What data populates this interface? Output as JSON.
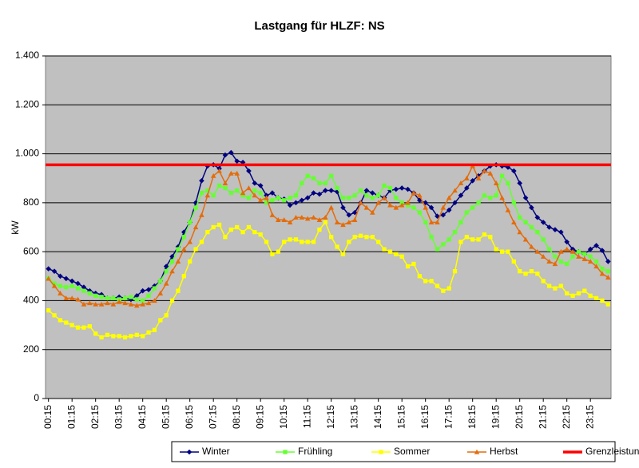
{
  "chart_data": {
    "type": "line",
    "title": "Lastgang für HLZF: NS",
    "y_label": "kW",
    "categories": [
      "00:15",
      null,
      null,
      null,
      "01:15",
      null,
      null,
      null,
      "02:15",
      null,
      null,
      null,
      "03:15",
      null,
      null,
      null,
      "04:15",
      null,
      null,
      null,
      "05:15",
      null,
      null,
      null,
      "06:15",
      null,
      null,
      null,
      "07:15",
      null,
      null,
      null,
      "08:15",
      null,
      null,
      null,
      "09:15",
      null,
      null,
      null,
      "10:15",
      null,
      null,
      null,
      "11:15",
      null,
      null,
      null,
      "12:15",
      null,
      null,
      null,
      "13:15",
      null,
      null,
      null,
      "14:15",
      null,
      null,
      null,
      "15:15",
      null,
      null,
      null,
      "16:15",
      null,
      null,
      null,
      "17:15",
      null,
      null,
      null,
      "18:15",
      null,
      null,
      null,
      "19:15",
      null,
      null,
      null,
      "20:15",
      null,
      null,
      null,
      "21:15",
      null,
      null,
      null,
      "22:15",
      null,
      null,
      null,
      "23:15",
      null,
      null,
      null
    ],
    "ylim": [
      0,
      1400
    ],
    "yticks": [
      0,
      200,
      400,
      600,
      800,
      {
        "value": 1000,
        "label": "1.000"
      },
      {
        "value": 1200,
        "label": "1.200"
      },
      {
        "value": 1400,
        "label": "1.400"
      }
    ],
    "grid": true,
    "series": [
      {
        "name": "Winter",
        "color": "#000080",
        "marker": "diamond",
        "values": [
          530,
          520,
          500,
          490,
          480,
          470,
          455,
          440,
          430,
          425,
          410,
          410,
          415,
          410,
          405,
          420,
          440,
          445,
          460,
          480,
          540,
          580,
          620,
          680,
          720,
          800,
          890,
          950,
          955,
          940,
          995,
          1005,
          970,
          965,
          930,
          880,
          870,
          830,
          840,
          820,
          815,
          790,
          800,
          810,
          820,
          840,
          835,
          850,
          850,
          845,
          780,
          750,
          760,
          800,
          850,
          840,
          830,
          820,
          850,
          855,
          860,
          855,
          840,
          810,
          800,
          780,
          745,
          750,
          770,
          800,
          830,
          860,
          890,
          910,
          930,
          950,
          955,
          950,
          945,
          930,
          880,
          820,
          780,
          740,
          720,
          700,
          690,
          680,
          640,
          610,
          600,
          590,
          610,
          625,
          605,
          560
        ]
      },
      {
        "name": "Frühling",
        "color": "#66ff33",
        "marker": "square",
        "values": [
          490,
          470,
          460,
          455,
          460,
          450,
          440,
          430,
          420,
          415,
          410,
          410,
          405,
          410,
          415,
          405,
          400,
          420,
          450,
          480,
          520,
          560,
          610,
          660,
          720,
          780,
          840,
          850,
          830,
          870,
          860,
          840,
          850,
          830,
          820,
          850,
          840,
          800,
          810,
          820,
          810,
          820,
          830,
          880,
          910,
          900,
          880,
          880,
          910,
          860,
          820,
          820,
          830,
          850,
          830,
          820,
          830,
          870,
          860,
          820,
          800,
          790,
          780,
          760,
          720,
          660,
          610,
          630,
          650,
          680,
          720,
          760,
          780,
          800,
          830,
          820,
          830,
          910,
          880,
          800,
          740,
          720,
          700,
          680,
          650,
          610,
          580,
          560,
          550,
          580,
          600,
          590,
          580,
          560,
          530,
          520
        ]
      },
      {
        "name": "Sommer",
        "color": "#ffff00",
        "marker": "square",
        "values": [
          360,
          340,
          320,
          310,
          300,
          290,
          290,
          295,
          265,
          250,
          260,
          255,
          255,
          250,
          255,
          260,
          255,
          270,
          280,
          320,
          340,
          400,
          440,
          500,
          560,
          610,
          640,
          680,
          700,
          710,
          660,
          690,
          700,
          680,
          700,
          680,
          670,
          640,
          590,
          600,
          640,
          650,
          650,
          640,
          640,
          640,
          690,
          720,
          660,
          620,
          590,
          640,
          660,
          665,
          660,
          660,
          640,
          610,
          600,
          590,
          580,
          540,
          550,
          500,
          480,
          480,
          460,
          440,
          450,
          520,
          640,
          660,
          650,
          650,
          670,
          660,
          610,
          600,
          600,
          560,
          520,
          510,
          520,
          510,
          480,
          460,
          450,
          460,
          430,
          420,
          430,
          440,
          420,
          410,
          400,
          385
        ]
      },
      {
        "name": "Herbst",
        "color": "#e46c0a",
        "marker": "triangle",
        "values": [
          490,
          460,
          430,
          410,
          410,
          405,
          385,
          390,
          385,
          385,
          390,
          385,
          395,
          390,
          385,
          380,
          385,
          390,
          400,
          430,
          470,
          520,
          560,
          610,
          640,
          700,
          750,
          830,
          910,
          930,
          880,
          920,
          920,
          840,
          860,
          830,
          810,
          820,
          750,
          730,
          730,
          720,
          740,
          740,
          735,
          740,
          730,
          740,
          780,
          720,
          710,
          720,
          730,
          800,
          780,
          760,
          800,
          820,
          790,
          780,
          790,
          800,
          840,
          830,
          780,
          720,
          720,
          780,
          820,
          850,
          880,
          900,
          950,
          900,
          930,
          920,
          880,
          820,
          770,
          720,
          680,
          650,
          620,
          600,
          580,
          560,
          550,
          600,
          610,
          600,
          580,
          570,
          560,
          540,
          510,
          495
        ]
      }
    ],
    "threshold": {
      "name": "Grenzleistung",
      "value": 955,
      "color": "#ff0000"
    }
  }
}
